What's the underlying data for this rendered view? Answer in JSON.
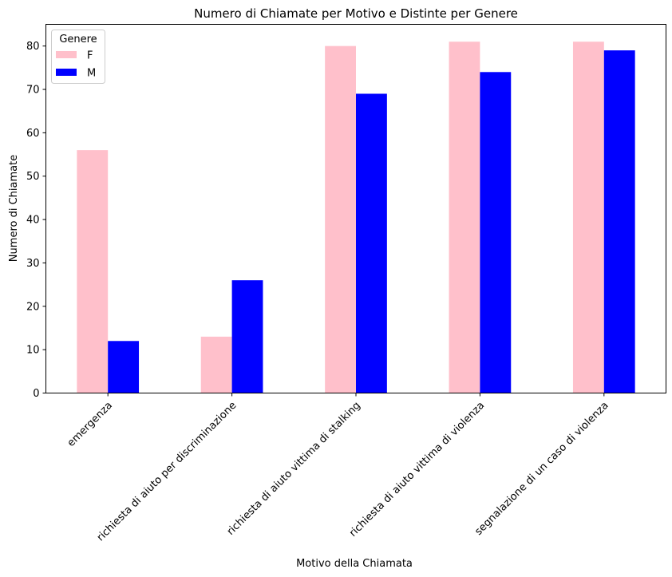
{
  "chart_data": {
    "type": "bar",
    "title": "Numero di Chiamate per Motivo e Distinte per Genere",
    "xlabel": "Motivo della Chiamata",
    "ylabel": "Numero di Chiamate",
    "categories": [
      "emergenza",
      "richiesta di aiuto per discriminazione",
      "richiesta di aiuto vittima di stalking",
      "richiesta di aiuto vittima di violenza",
      "segnalazione di un caso di violenza"
    ],
    "series": [
      {
        "name": "F",
        "color": "#ffc0cb",
        "values": [
          56,
          13,
          80,
          81,
          81
        ]
      },
      {
        "name": "M",
        "color": "#0000ff",
        "values": [
          12,
          26,
          69,
          74,
          79
        ]
      }
    ],
    "ylim": [
      0,
      85
    ],
    "yticks": [
      0,
      10,
      20,
      30,
      40,
      50,
      60,
      70,
      80
    ],
    "legend": {
      "title": "Genere",
      "placement": "top-left"
    },
    "grid": false
  }
}
